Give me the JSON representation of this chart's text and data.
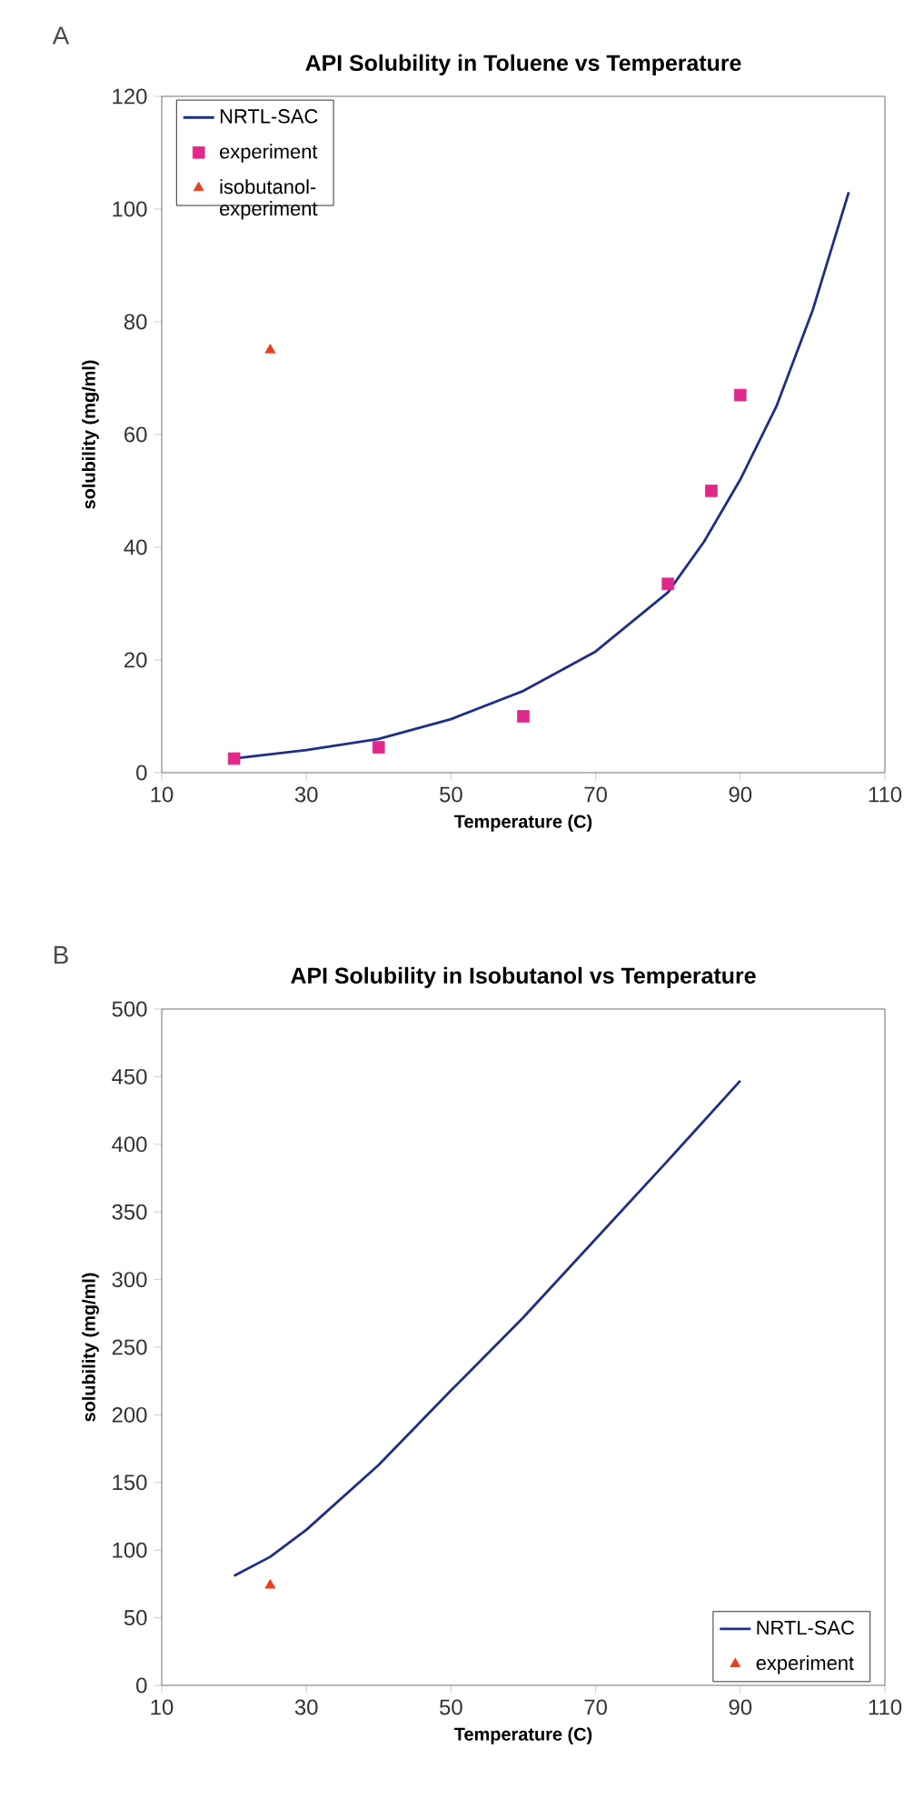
{
  "chart_data": [
    {
      "type": "line",
      "title": "API Solubility in Toluene vs Temperature",
      "xlabel": "Temperature (C)",
      "ylabel": "solubility (mg/ml)",
      "annotations": [
        "A"
      ],
      "xlim": [
        10,
        110
      ],
      "xticks": [
        10,
        30,
        50,
        70,
        90,
        110
      ],
      "ylim": [
        0,
        120
      ],
      "yticks": [
        0,
        20,
        40,
        60,
        80,
        100,
        120
      ],
      "legend": "top left",
      "series": [
        {
          "name": "NRTL-SAC",
          "type": "line",
          "marker": "none",
          "line_style": "solid",
          "color": "#1f2f86",
          "x": [
            20,
            30,
            40,
            50,
            60,
            70,
            80,
            85,
            90,
            95,
            100,
            105
          ],
          "values": [
            2.5,
            4,
            6,
            9.5,
            14.5,
            21.5,
            32,
            41,
            52,
            65,
            82,
            103
          ]
        },
        {
          "name": "experiment",
          "type": "scatter",
          "marker": "square",
          "color": "#e0288a",
          "x": [
            20,
            40,
            60,
            80,
            86,
            90
          ],
          "values": [
            2.5,
            4.5,
            10,
            33.5,
            50,
            67
          ]
        },
        {
          "name": "isobutanol-experiment",
          "type": "scatter",
          "marker": "triangle",
          "color": "#e8401c",
          "x": [
            25
          ],
          "values": [
            75
          ]
        }
      ]
    },
    {
      "type": "line",
      "title": "API Solubility in Isobutanol vs Temperature",
      "xlabel": "Temperature (C)",
      "ylabel": "solubility (mg/ml)",
      "annotations": [
        "B"
      ],
      "xlim": [
        10,
        110
      ],
      "xticks": [
        10,
        30,
        50,
        70,
        90,
        110
      ],
      "ylim": [
        0,
        500
      ],
      "yticks": [
        0,
        50,
        100,
        150,
        200,
        250,
        300,
        350,
        400,
        450,
        500
      ],
      "legend": "bottom right",
      "series": [
        {
          "name": "NRTL-SAC",
          "type": "line",
          "marker": "none",
          "line_style": "solid",
          "color": "#1f2f86",
          "x": [
            20,
            25,
            30,
            40,
            50,
            60,
            70,
            80,
            90
          ],
          "values": [
            81,
            95,
            115,
            163,
            218,
            272,
            330,
            388,
            447
          ]
        },
        {
          "name": "experiment",
          "type": "scatter",
          "marker": "triangle",
          "color": "#e8401c",
          "x": [
            25
          ],
          "values": [
            74
          ]
        }
      ]
    }
  ]
}
